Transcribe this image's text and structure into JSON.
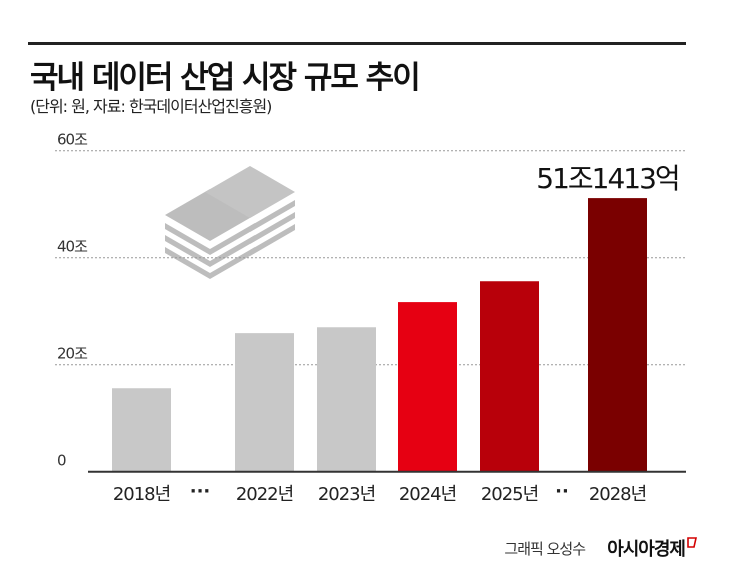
{
  "chart_data": {
    "type": "bar",
    "title": "국내 데이터 산업 시장 규모 추이",
    "subtitle": "(단위: 원, 자료: 한국데이터산업진흥원)",
    "categories": [
      "2018년",
      "2022년",
      "2023년",
      "2024년",
      "2025년",
      "2028년"
    ],
    "values": [
      15.6,
      25.9,
      27.0,
      31.7,
      35.6,
      51.14
    ],
    "bar_colors": [
      "#c8c8c8",
      "#c8c8c8",
      "#c8c8c8",
      "#e60012",
      "#b8000a",
      "#7a0000"
    ],
    "yticks": [
      {
        "value": 0,
        "label": "0"
      },
      {
        "value": 20,
        "label": "20조"
      },
      {
        "value": 40,
        "label": "40조"
      },
      {
        "value": 60,
        "label": "60조"
      }
    ],
    "ylim": [
      0,
      60
    ],
    "grid": true,
    "annotation": {
      "category": "2028년",
      "text": "51조1413억"
    },
    "gap_markers": [
      "···",
      "··"
    ]
  },
  "footer": {
    "credit": "그래픽 오성수",
    "brand": "아시아경제"
  }
}
